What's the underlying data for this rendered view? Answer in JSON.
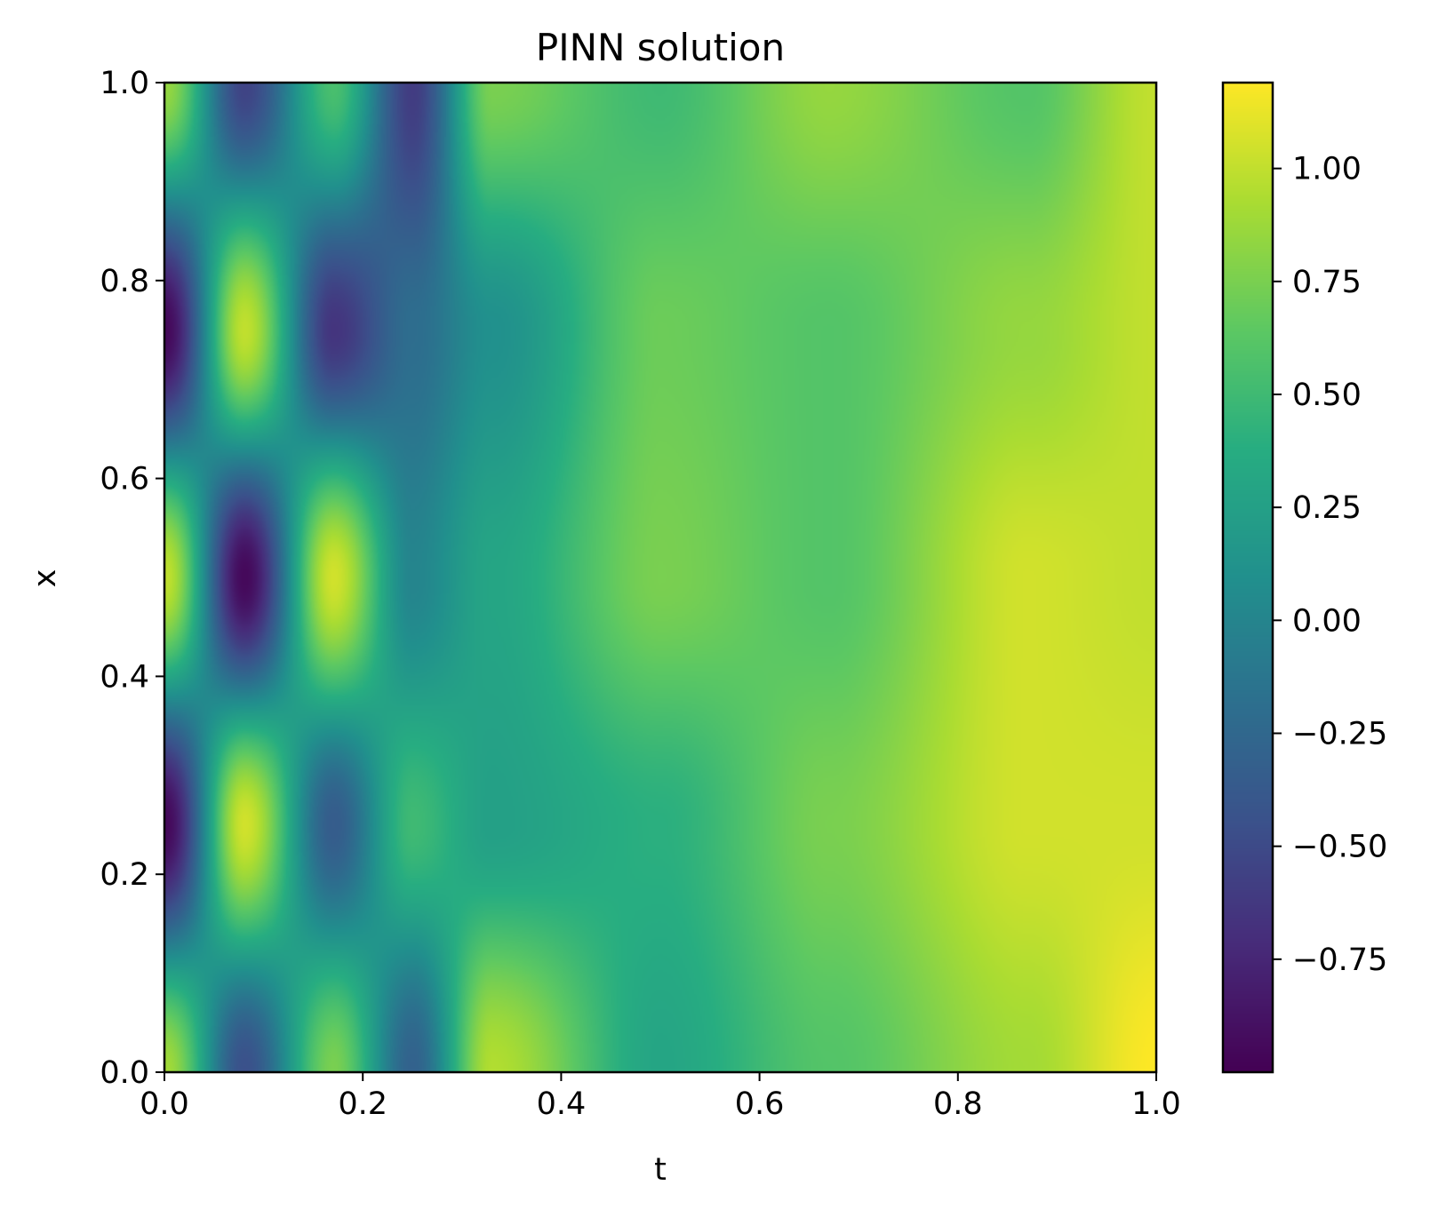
{
  "chart_data": {
    "type": "heatmap",
    "title": "PINN solution",
    "xlabel": "t",
    "ylabel": "x",
    "xlim": [
      0.0,
      1.0
    ],
    "ylim": [
      0.0,
      1.0
    ],
    "x_ticks": [
      "0.0",
      "0.2",
      "0.4",
      "0.6",
      "0.8",
      "1.0"
    ],
    "y_ticks": [
      "0.0",
      "0.2",
      "0.4",
      "0.6",
      "0.8",
      "1.0"
    ],
    "colormap": "viridis",
    "colorbar": {
      "vmin": -1.0,
      "vmax": 1.19,
      "ticks": [
        1.0,
        0.75,
        0.5,
        0.25,
        0.0,
        -0.25,
        -0.5,
        -0.75
      ],
      "tick_labels": [
        "1.00",
        "0.75",
        "0.50",
        "0.25",
        "0.00",
        "−0.25",
        "−0.50",
        "−0.75"
      ]
    },
    "grid": false,
    "legend": "none",
    "sample_t": [
      0.0,
      0.08,
      0.17,
      0.25,
      0.33,
      0.5,
      0.67,
      0.87,
      1.0
    ],
    "sample_x": [
      1.0,
      0.75,
      0.5,
      0.25,
      0.0
    ],
    "values": [
      [
        0.85,
        -0.55,
        0.55,
        -0.6,
        0.75,
        0.5,
        0.85,
        0.6,
        1.0
      ],
      [
        -0.95,
        1.0,
        -0.65,
        -0.2,
        0.1,
        0.7,
        0.6,
        0.85,
        1.0
      ],
      [
        1.0,
        -0.95,
        1.05,
        0.0,
        0.3,
        0.75,
        0.6,
        1.05,
        1.0
      ],
      [
        -0.95,
        1.05,
        -0.35,
        0.5,
        0.25,
        0.4,
        0.75,
        1.05,
        1.05
      ],
      [
        0.9,
        -0.45,
        0.75,
        -0.3,
        0.95,
        0.3,
        0.6,
        0.9,
        1.19
      ]
    ]
  }
}
